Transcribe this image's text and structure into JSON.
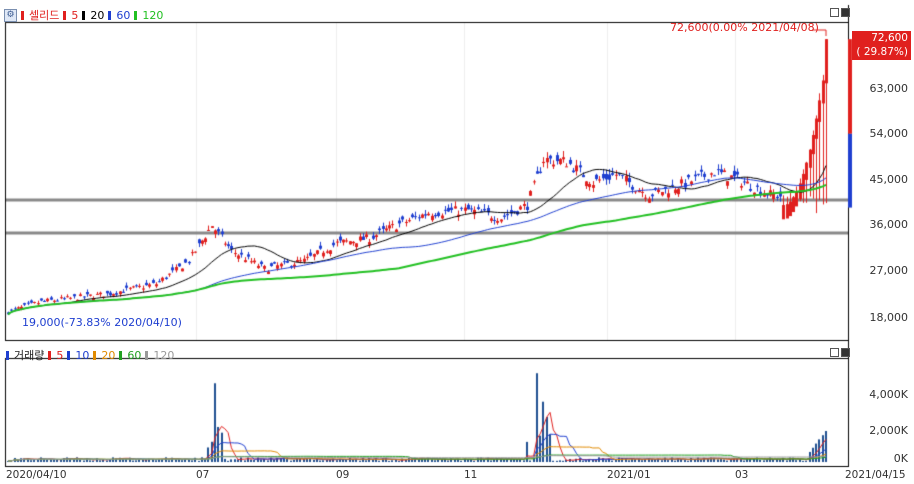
{
  "price_panel": {
    "stock_name": "셀리드",
    "settings_icon": "sliders-icon",
    "ma_legend": [
      {
        "label": "5",
        "color": "#e0201e"
      },
      {
        "label": "20",
        "color": "#000000"
      },
      {
        "label": "60",
        "color": "#1f3fd0"
      },
      {
        "label": "120",
        "color": "#22c022"
      }
    ],
    "y_axis_labels": [
      "63,000",
      "54,000",
      "45,000",
      "36,000",
      "27,000",
      "18,000"
    ],
    "current_price_line1": "72,600",
    "current_price_line2": "( 29.87%)",
    "high_annotation": "72,600(0.00% 2021/04/08)",
    "low_annotation": "19,000(-73.83% 2020/04/10)",
    "colors": {
      "up": "#e0201e",
      "down": "#1f3fd0",
      "support": "#888888",
      "ma120": "#22c022"
    }
  },
  "volume_panel": {
    "title": "거래량",
    "ma_legend": [
      {
        "label": "5",
        "color": "#e0201e"
      },
      {
        "label": "10",
        "color": "#1f3fd0"
      },
      {
        "label": "20",
        "color": "#e08a00"
      },
      {
        "label": "60",
        "color": "#22a022"
      },
      {
        "label": "120",
        "color": "#999999"
      }
    ],
    "y_axis_labels": [
      "4,000K",
      "2,000K",
      "0K"
    ]
  },
  "x_axis_labels": [
    "2020/04/10",
    "07",
    "09",
    "11",
    "2021/01",
    "03",
    "2021/04/15"
  ]
}
